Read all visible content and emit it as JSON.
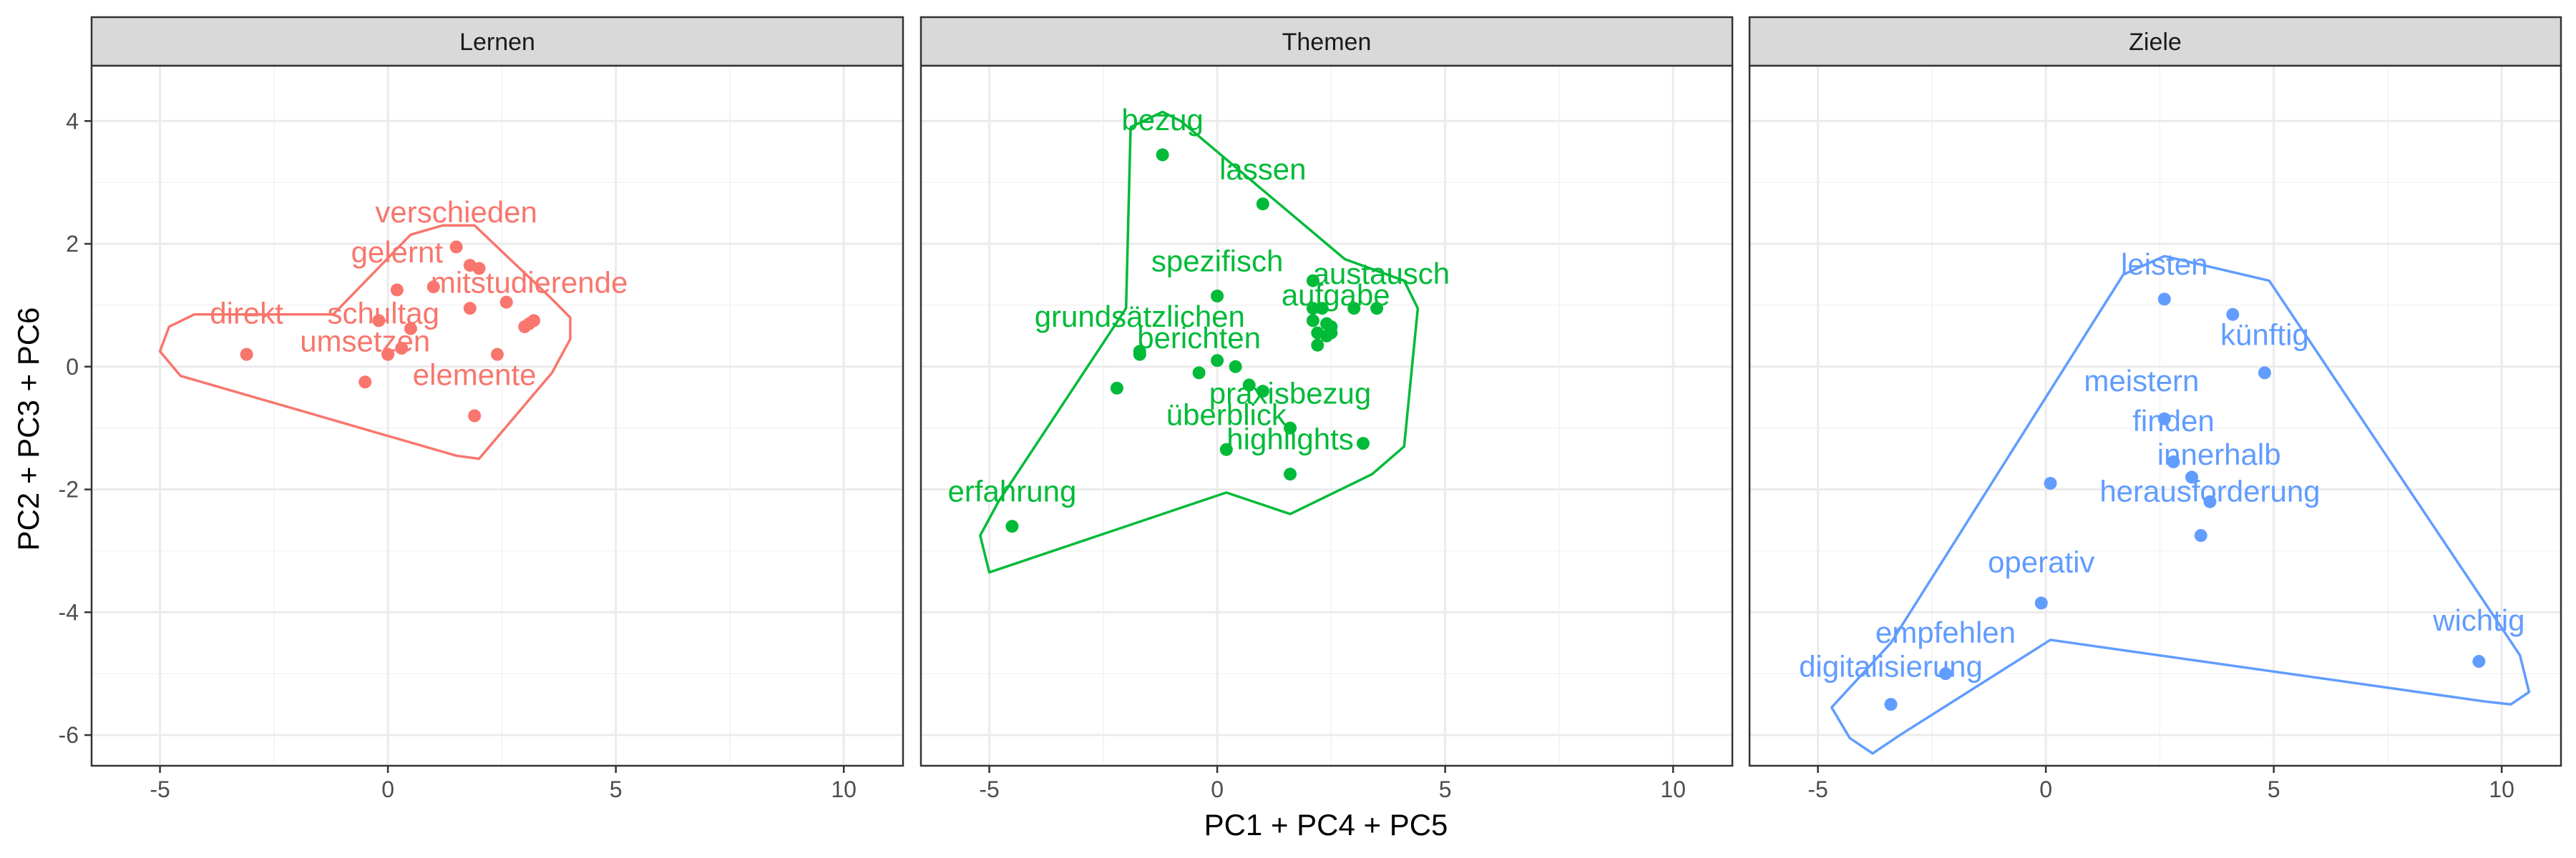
{
  "chart_data": {
    "type": "scatter",
    "xlabel": "PC1 + PC4 + PC5",
    "ylabel": "PC2 + PC3 + PC6",
    "xlim": [
      -6.5,
      11.3
    ],
    "ylim": [
      -6.5,
      4.9
    ],
    "x_ticks": [
      -5,
      0,
      5,
      10
    ],
    "y_ticks": [
      4,
      2,
      0,
      -2,
      -4,
      -6
    ],
    "grid": true,
    "panels": [
      {
        "name": "Lernen",
        "color": "#F8766D",
        "points": [
          [
            1.5,
            1.95
          ],
          [
            1.8,
            1.65
          ],
          [
            2.0,
            1.6
          ],
          [
            0.2,
            1.25
          ],
          [
            1.0,
            1.3
          ],
          [
            2.6,
            1.05
          ],
          [
            1.8,
            0.95
          ],
          [
            -0.2,
            0.75
          ],
          [
            0.5,
            0.62
          ],
          [
            3.1,
            0.7
          ],
          [
            3.2,
            0.75
          ],
          [
            3.0,
            0.65
          ],
          [
            -3.1,
            0.2
          ],
          [
            0.3,
            0.3
          ],
          [
            0.0,
            0.2
          ],
          [
            2.4,
            0.2
          ],
          [
            -0.5,
            -0.25
          ],
          [
            1.9,
            -0.8
          ]
        ],
        "labels": [
          {
            "text": "verschieden",
            "x": 1.5,
            "y": 2.35
          },
          {
            "text": "gelernt",
            "x": 0.2,
            "y": 1.7
          },
          {
            "text": "mitstudierende",
            "x": 3.1,
            "y": 1.2
          },
          {
            "text": "direkt",
            "x": -3.1,
            "y": 0.7
          },
          {
            "text": "schultag",
            "x": -0.1,
            "y": 0.7
          },
          {
            "text": "umsetzen",
            "x": -0.5,
            "y": 0.25
          },
          {
            "text": "elemente",
            "x": 1.9,
            "y": -0.3
          }
        ],
        "hull": [
          [
            -4.25,
            0.85
          ],
          [
            -1.2,
            0.85
          ],
          [
            0.5,
            2.15
          ],
          [
            1.2,
            2.3
          ],
          [
            1.9,
            2.3
          ],
          [
            3.6,
            1.1
          ],
          [
            4.0,
            0.8
          ],
          [
            4.0,
            0.45
          ],
          [
            3.6,
            -0.1
          ],
          [
            2.0,
            -1.5
          ],
          [
            1.5,
            -1.45
          ],
          [
            -4.55,
            -0.15
          ],
          [
            -5.0,
            0.25
          ],
          [
            -4.8,
            0.65
          ]
        ]
      },
      {
        "name": "Themen",
        "color": "#00BA38",
        "points": [
          [
            -1.2,
            3.45
          ],
          [
            1.0,
            2.65
          ],
          [
            0.0,
            1.15
          ],
          [
            2.1,
            1.4
          ],
          [
            2.1,
            0.95
          ],
          [
            2.3,
            0.95
          ],
          [
            3.0,
            0.95
          ],
          [
            3.5,
            0.95
          ],
          [
            2.1,
            0.75
          ],
          [
            2.4,
            0.7
          ],
          [
            2.5,
            0.65
          ],
          [
            2.2,
            0.55
          ],
          [
            2.5,
            0.55
          ],
          [
            2.4,
            0.5
          ],
          [
            2.2,
            0.35
          ],
          [
            -1.7,
            0.2
          ],
          [
            -1.7,
            0.25
          ],
          [
            0.0,
            0.1
          ],
          [
            0.4,
            0.0
          ],
          [
            -0.4,
            -0.1
          ],
          [
            -2.2,
            -0.35
          ],
          [
            0.7,
            -0.3
          ],
          [
            1.0,
            -0.4
          ],
          [
            1.6,
            -1.0
          ],
          [
            3.2,
            -1.25
          ],
          [
            0.2,
            -1.35
          ],
          [
            1.6,
            -1.75
          ],
          [
            -4.5,
            -2.6
          ]
        ],
        "labels": [
          {
            "text": "bezug",
            "x": -1.2,
            "y": 3.85
          },
          {
            "text": "lassen",
            "x": 1.0,
            "y": 3.05
          },
          {
            "text": "spezifisch",
            "x": 0.0,
            "y": 1.55
          },
          {
            "text": "austausch",
            "x": 3.6,
            "y": 1.35
          },
          {
            "text": "aufgabe",
            "x": 2.6,
            "y": 1.0
          },
          {
            "text": "grundsätzlichen",
            "x": -1.7,
            "y": 0.65
          },
          {
            "text": "berichten",
            "x": -0.4,
            "y": 0.3
          },
          {
            "text": "praxisbezug",
            "x": 1.6,
            "y": -0.6
          },
          {
            "text": "überblick",
            "x": 0.2,
            "y": -0.95
          },
          {
            "text": "highlights",
            "x": 1.6,
            "y": -1.35
          },
          {
            "text": "erfahrung",
            "x": -4.5,
            "y": -2.2
          }
        ],
        "hull": [
          [
            -1.9,
            3.9
          ],
          [
            -1.2,
            4.15
          ],
          [
            -0.8,
            4.0
          ],
          [
            2.8,
            1.75
          ],
          [
            4.1,
            1.4
          ],
          [
            4.4,
            0.95
          ],
          [
            4.1,
            -1.3
          ],
          [
            3.4,
            -1.75
          ],
          [
            1.6,
            -2.4
          ],
          [
            0.2,
            -2.05
          ],
          [
            -5.0,
            -3.35
          ],
          [
            -5.2,
            -2.75
          ],
          [
            -4.8,
            -2.2
          ],
          [
            -2.0,
            0.95
          ]
        ]
      },
      {
        "name": "Ziele",
        "color": "#619CFF",
        "points": [
          [
            2.6,
            1.1
          ],
          [
            4.1,
            0.85
          ],
          [
            4.8,
            -0.1
          ],
          [
            2.6,
            -0.85
          ],
          [
            2.8,
            -1.55
          ],
          [
            3.2,
            -1.8
          ],
          [
            3.6,
            -2.2
          ],
          [
            0.1,
            -1.9
          ],
          [
            3.4,
            -2.75
          ],
          [
            -0.1,
            -3.85
          ],
          [
            -2.2,
            -5.0
          ],
          [
            -3.4,
            -5.5
          ],
          [
            9.5,
            -4.8
          ]
        ],
        "labels": [
          {
            "text": "leisten",
            "x": 2.6,
            "y": 1.5
          },
          {
            "text": "künftig",
            "x": 4.8,
            "y": 0.35
          },
          {
            "text": "meistern",
            "x": 2.1,
            "y": -0.4
          },
          {
            "text": "finden",
            "x": 2.8,
            "y": -1.05
          },
          {
            "text": "innerhalb",
            "x": 3.8,
            "y": -1.6
          },
          {
            "text": "herausforderung",
            "x": 3.6,
            "y": -2.2
          },
          {
            "text": "operativ",
            "x": -0.1,
            "y": -3.35
          },
          {
            "text": "empfehlen",
            "x": -2.2,
            "y": -4.5
          },
          {
            "text": "digitalisierung",
            "x": -3.4,
            "y": -5.05
          },
          {
            "text": "wichtig",
            "x": 9.5,
            "y": -4.3
          }
        ],
        "hull": [
          [
            1.7,
            1.5
          ],
          [
            2.6,
            1.8
          ],
          [
            4.9,
            1.4
          ],
          [
            10.4,
            -4.7
          ],
          [
            10.6,
            -5.3
          ],
          [
            10.2,
            -5.5
          ],
          [
            9.6,
            -5.45
          ],
          [
            0.1,
            -4.45
          ],
          [
            -3.2,
            -6.0
          ],
          [
            -3.8,
            -6.3
          ],
          [
            -4.3,
            -6.05
          ],
          [
            -4.7,
            -5.55
          ],
          [
            -3.4,
            -4.5
          ]
        ]
      }
    ]
  }
}
